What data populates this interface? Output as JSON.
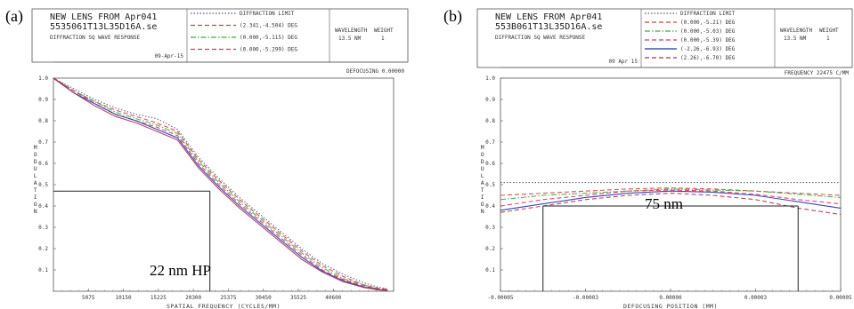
{
  "chart_data": [
    {
      "type": "line",
      "panel_label": "(a)",
      "header": {
        "title_lines": [
          "NEW LENS FROM Apr041",
          "5535061T13L35D16A.se",
          "DIFFRACTION SQ WAVE RESPONSE"
        ],
        "date": "09-Apr-15",
        "legend": [
          "DIFFRACTION LIMIT",
          "(2.341,-4.504) DEG",
          "(0.000,-5.115) DEG",
          "(0.000,-5.299) DEG"
        ],
        "wavelength_label": "WAVELENGTH",
        "wavelength_value": "13.5 NM",
        "weight_label": "WEIGHT",
        "weight_value": "1",
        "status": "DEFOCUSING 0.00000"
      },
      "xlabel": "SPATIAL FREQUENCY (CYCLES/MM)",
      "ylabel": "MODULATION",
      "xlim": [
        0,
        49350
      ],
      "ylim": [
        0,
        1.0
      ],
      "x_ticks": [
        "5075",
        "10150",
        "15225",
        "20300",
        "25375",
        "30450",
        "35525",
        "40600"
      ],
      "y_ticks": [
        "0.1",
        "0.2",
        "0.3",
        "0.4",
        "0.5",
        "0.6",
        "0.7",
        "0.8",
        "0.9",
        "1.0"
      ],
      "annotation": "22 nm HP",
      "marker": {
        "x": 22700,
        "y": 0.47
      },
      "x": [
        0,
        3000,
        6000,
        9000,
        12000,
        15000,
        18000,
        21000,
        24000,
        27000,
        30000,
        33000,
        36000,
        39000,
        42000,
        45000,
        47000,
        48500
      ],
      "series": [
        {
          "style": "dotted",
          "values": [
            1.0,
            0.95,
            0.9,
            0.86,
            0.83,
            0.81,
            0.76,
            0.63,
            0.53,
            0.44,
            0.36,
            0.28,
            0.2,
            0.13,
            0.08,
            0.04,
            0.02,
            0.01
          ]
        },
        {
          "style": "dashed",
          "values": [
            1.0,
            0.94,
            0.89,
            0.85,
            0.82,
            0.79,
            0.75,
            0.62,
            0.52,
            0.43,
            0.35,
            0.27,
            0.19,
            0.12,
            0.07,
            0.03,
            0.015,
            0.01
          ]
        },
        {
          "style": "dashdot",
          "values": [
            1.0,
            0.94,
            0.89,
            0.84,
            0.81,
            0.78,
            0.74,
            0.61,
            0.51,
            0.42,
            0.34,
            0.26,
            0.18,
            0.11,
            0.06,
            0.03,
            0.01,
            0.005
          ]
        },
        {
          "style": "dashed",
          "values": [
            1.0,
            0.94,
            0.88,
            0.83,
            0.8,
            0.77,
            0.73,
            0.6,
            0.5,
            0.41,
            0.33,
            0.25,
            0.17,
            0.1,
            0.055,
            0.025,
            0.01,
            0.005
          ]
        },
        {
          "style": "solid",
          "values": [
            1.0,
            0.93,
            0.88,
            0.83,
            0.8,
            0.76,
            0.72,
            0.59,
            0.49,
            0.4,
            0.32,
            0.24,
            0.16,
            0.095,
            0.05,
            0.02,
            0.008,
            0.004
          ]
        },
        {
          "style": "solid",
          "values": [
            1.0,
            0.93,
            0.87,
            0.82,
            0.79,
            0.75,
            0.71,
            0.58,
            0.48,
            0.39,
            0.31,
            0.23,
            0.15,
            0.09,
            0.045,
            0.018,
            0.007,
            0.003
          ]
        }
      ]
    },
    {
      "type": "line",
      "panel_label": "(b)",
      "header": {
        "title_lines": [
          "NEW LENS FROM Apr041",
          "553B061T13L35D16A.se",
          "DIFFRACTION SQ WAVE RESPONSE"
        ],
        "date": "09 Apr 15",
        "legend": [
          "DIFFRACTION LIMIT",
          "(0.000,-5.21) DEG",
          "(0.000,-5.03) DEG",
          "(0.000,-5.39) DEG",
          "(-2.26,-6.93) DEG",
          "(2.26),-6.70) DEG"
        ],
        "wavelength_label": "WAVELENGTH",
        "wavelength_value": "13.5 NM",
        "weight_label": "WEIGHT",
        "weight_value": "1",
        "status": "FREQUENCY  22475 C/MM"
      },
      "xlabel": "DEFOCUSING POSITION (MM)",
      "ylabel": "MODULATION",
      "xlim": [
        -5e-05,
        5e-05
      ],
      "ylim": [
        0,
        1.0
      ],
      "x_ticks": [
        "-0.00005",
        "-0.00003",
        "0.00000",
        "0.00003",
        "0.00005"
      ],
      "y_ticks": [
        "0.1",
        "0.2",
        "0.3",
        "0.4",
        "0.5",
        "0.6",
        "0.7",
        "0.8",
        "0.9",
        "1.0"
      ],
      "annotation": "75 nm",
      "marker": {
        "x1": -3.75e-05,
        "x2": 3.75e-05,
        "y": 0.4
      },
      "x": [
        -5e-05,
        -3.75e-05,
        -2.5e-05,
        -1.25e-05,
        0,
        1.25e-05,
        2.5e-05,
        3.75e-05,
        5e-05
      ],
      "series": [
        {
          "style": "dotted",
          "values": [
            0.51,
            0.51,
            0.51,
            0.51,
            0.51,
            0.51,
            0.51,
            0.51,
            0.51
          ]
        },
        {
          "style": "dashed",
          "values": [
            0.45,
            0.46,
            0.47,
            0.48,
            0.485,
            0.48,
            0.47,
            0.46,
            0.45
          ]
        },
        {
          "style": "dashdot",
          "values": [
            0.43,
            0.45,
            0.46,
            0.47,
            0.48,
            0.475,
            0.47,
            0.455,
            0.44
          ]
        },
        {
          "style": "dashed",
          "values": [
            0.4,
            0.43,
            0.45,
            0.47,
            0.475,
            0.47,
            0.455,
            0.43,
            0.41
          ]
        },
        {
          "style": "solid",
          "values": [
            0.38,
            0.41,
            0.44,
            0.46,
            0.47,
            0.465,
            0.45,
            0.42,
            0.39
          ]
        },
        {
          "style": "dashed",
          "values": [
            0.37,
            0.4,
            0.43,
            0.45,
            0.46,
            0.45,
            0.43,
            0.39,
            0.36
          ]
        }
      ]
    }
  ],
  "colors": {
    "series": [
      "#555577",
      "#cc4444",
      "#44aa44",
      "#dd3366",
      "#2233aa",
      "#aa3355"
    ],
    "frame": "#555555",
    "marker": "#222222"
  }
}
